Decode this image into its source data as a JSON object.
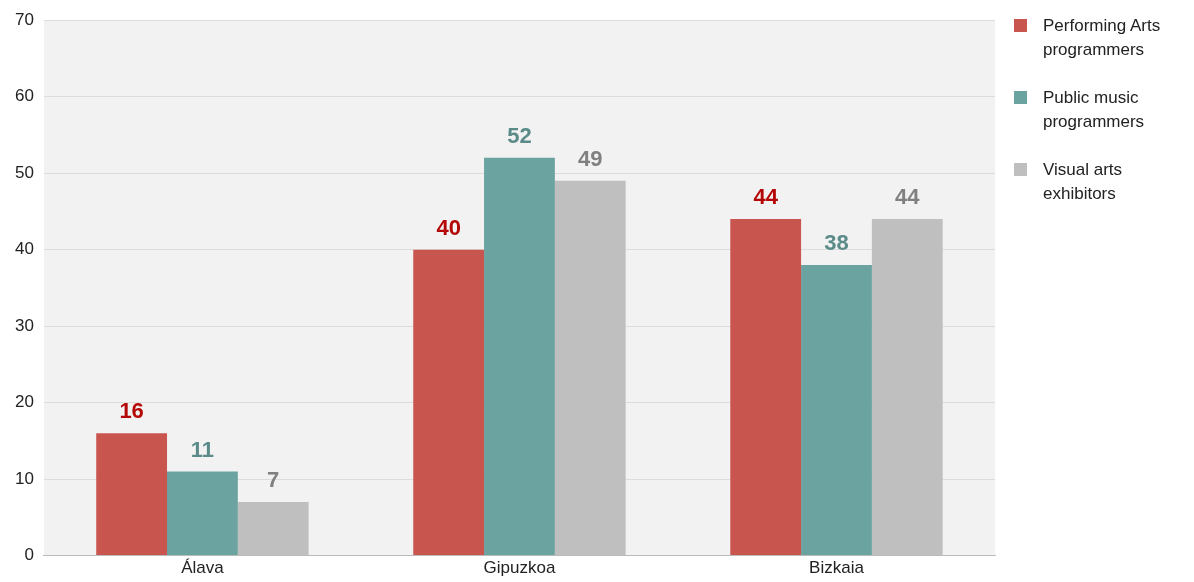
{
  "chart_data": {
    "type": "bar",
    "categories": [
      "Álava",
      "Gipuzkoa",
      "Bizkaia"
    ],
    "series": [
      {
        "name": "Performing Arts programmers",
        "color": "#c9554f",
        "values": [
          16,
          40,
          44
        ]
      },
      {
        "name": "Public music programmers",
        "color": "#6aa3a0",
        "values": [
          11,
          52,
          38
        ]
      },
      {
        "name": "Visual arts exhibitors",
        "color": "#bfbfbf",
        "values": [
          7,
          49,
          44
        ]
      }
    ],
    "ylim": [
      0,
      70
    ],
    "yticks": [
      0,
      10,
      20,
      30,
      40,
      50,
      60,
      70
    ],
    "grid": "y",
    "legend": "top right",
    "data_labels": true
  }
}
